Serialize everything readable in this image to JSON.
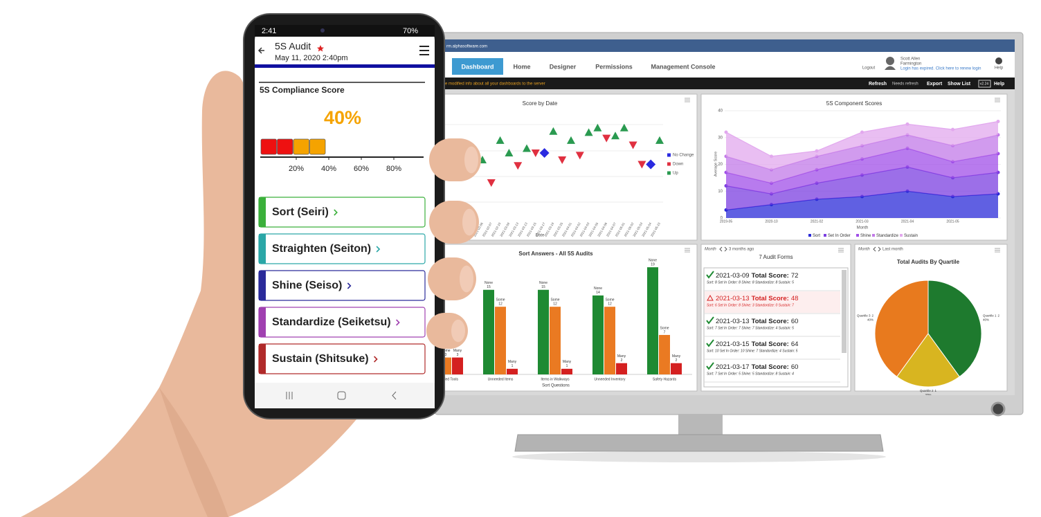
{
  "phone": {
    "status_time": "2:41",
    "battery": "70%",
    "title": "5S Audit",
    "subtitle": "May 11, 2020 2:40pm",
    "card_title": "5S Compliance Score",
    "score": {
      "value": 40,
      "label": "40%"
    },
    "scale": {
      "lim": [
        0,
        100
      ],
      "ticks": [
        {
          "value": 20,
          "label": "20%"
        },
        {
          "value": 40,
          "label": "40%"
        },
        {
          "value": 60,
          "label": "60%"
        },
        {
          "value": 80,
          "label": "80%"
        }
      ]
    },
    "segment_colors": [
      "#ee1111",
      "#ee1111",
      "#f5a300",
      "#f5a300"
    ],
    "menu": [
      {
        "label": "Sort (Seiri)",
        "color": "#3bb03b"
      },
      {
        "label": "Straighten (Seiton)",
        "color": "#2aa7a7"
      },
      {
        "label": "Shine (Seiso)",
        "color": "#2a2a9a"
      },
      {
        "label": "Standardize (Seiketsu)",
        "color": "#a040b0"
      },
      {
        "label": "Sustain (Shitsuke)",
        "color": "#b02a2a"
      }
    ]
  },
  "monitor": {
    "url": "rm.alphasoftware.com",
    "tabs": [
      "Dashboard",
      "Home",
      "Designer",
      "Permissions",
      "Management Console"
    ],
    "user": {
      "logout": "Logout",
      "name": "Scott Allen",
      "location": "Farmington",
      "notice": "Login has expired. Click here to renew login",
      "help": "Help"
    },
    "toolbar": {
      "message": "ve modified info about all your dashboards to the server",
      "refresh": "Refresh",
      "status": "Needs refresh",
      "export": "Export",
      "show_list": "Show List",
      "version": "v2.24",
      "help": "Help"
    },
    "score_by_date": {
      "type": "scatter",
      "title": "Score by Date",
      "x_label": "Date",
      "ylim": [
        0,
        100
      ],
      "x": [
        "2021-02-06",
        "2021-02-07",
        "2021-02-10",
        "2021-03-09",
        "2021-03-13",
        "2021-03-13",
        "2021-03-15",
        "2021-03-17",
        "2021-03-19",
        "2021-03-25",
        "2021-04-01",
        "2021-04-02",
        "2021-04-03",
        "2021-04-05",
        "2021-04-06",
        "2021-04-07",
        "2021-05-01",
        "2021-05-02",
        "2021-05-03",
        "2021-05-04",
        "2021-05-10"
      ],
      "series": [
        {
          "name": "No Change",
          "color": "#2a2ae0",
          "marker": "diamond",
          "values": [
            null,
            null,
            null,
            null,
            null,
            null,
            null,
            63,
            null,
            null,
            null,
            null,
            null,
            null,
            null,
            null,
            null,
            null,
            null,
            53,
            null
          ]
        },
        {
          "name": "Down",
          "color": "#e03040",
          "marker": "down",
          "values": [
            null,
            37,
            null,
            null,
            52,
            null,
            63,
            null,
            null,
            57,
            null,
            61,
            null,
            null,
            76,
            null,
            null,
            70,
            53,
            null,
            null
          ]
        },
        {
          "name": "Up",
          "color": "#2a9a50",
          "marker": "up",
          "values": [
            57,
            null,
            74,
            63,
            null,
            67,
            null,
            null,
            82,
            null,
            74,
            null,
            81,
            85,
            null,
            78,
            85,
            null,
            null,
            null,
            74
          ]
        }
      ]
    },
    "component_scores": {
      "type": "area",
      "title": "5S Component Scores",
      "x_label": "Month",
      "y_label": "Average Score",
      "stacked": true,
      "categories": [
        "2019-05",
        "2020-10",
        "2021-02",
        "2021-03",
        "2021-04",
        "2021-05",
        null
      ],
      "ylim": [
        0,
        40
      ],
      "yticks": [
        0,
        10,
        20,
        30,
        40
      ],
      "series": [
        {
          "name": "Sort",
          "color": "#2b2bd8",
          "values": [
            3,
            5,
            7,
            8,
            10,
            8,
            9
          ]
        },
        {
          "name": "Set In Order",
          "color": "#7b3fe0",
          "values": [
            9,
            4,
            6,
            8,
            9,
            7,
            8
          ]
        },
        {
          "name": "Shine",
          "color": "#a04fe8",
          "values": [
            5,
            4,
            5,
            6,
            7,
            6,
            7
          ]
        },
        {
          "name": "Standardize",
          "color": "#c27ae8",
          "values": [
            6,
            5,
            5,
            5,
            5,
            6,
            7
          ]
        },
        {
          "name": "Sustain",
          "color": "#e2a8ee",
          "values": [
            9,
            5,
            2,
            5,
            4,
            6,
            5
          ]
        }
      ]
    },
    "sort_answers": {
      "type": "bar",
      "title": "Sort Answers - All 5S Audits",
      "x_label": "Sort Questions",
      "ylim": [
        0,
        20
      ],
      "categories": [
        "Unneeded Tools",
        "Unneeded Items",
        "Items in Walkways",
        "Unneeded Inventory",
        "Safety Hazards"
      ],
      "series": [
        {
          "name": "None",
          "color": "#1e8a32",
          "values": [
            12,
            15,
            15,
            14,
            19
          ]
        },
        {
          "name": "Some",
          "color": "#ea7a22",
          "values": [
            3,
            12,
            12,
            12,
            7
          ]
        },
        {
          "name": "Many",
          "color": "#d42020",
          "values": [
            3,
            1,
            1,
            2,
            2
          ]
        }
      ]
    },
    "audit_forms": {
      "period": "Month",
      "range": "3 months ago",
      "title": "7 Audit Forms",
      "items": [
        {
          "date": "2021-03-09",
          "label": "Total Score:",
          "score": 72,
          "detail": "Sort: 8 Set In Order: 8 Shine: 8 Standordize: 8 Sustain: 5",
          "status": "ok"
        },
        {
          "date": "2021-03-13",
          "label": "Total Score:",
          "score": 48,
          "detail": "Sort: 6 Set In Order: 8 Shine: 3 Standordize: 0 Sustain: 7",
          "status": "warn"
        },
        {
          "date": "2021-03-13",
          "label": "Total Score:",
          "score": 60,
          "detail": "Sort: 7 Set In Order: 7 Shine: 7 Standordize: 4 Sustain: 5",
          "status": "ok"
        },
        {
          "date": "2021-03-15",
          "label": "Total Score:",
          "score": 64,
          "detail": "Sort: 10 Set In Order: 10 Shine: 7 Standordize: 4 Sustain: 5",
          "status": "ok"
        },
        {
          "date": "2021-03-17",
          "label": "Total Score:",
          "score": 60,
          "detail": "Sort: 7 Set In Order: 5 Shine: 5 Standordize: 8 Sustain: 4",
          "status": "ok"
        }
      ]
    },
    "quartiles": {
      "type": "pie",
      "period": "Month",
      "range": "Last month",
      "title": "Total Audits By Quartile",
      "categories": [
        "Quartile 1",
        "Quartile 2",
        "Quartile 3"
      ],
      "counts": [
        2,
        1,
        2
      ],
      "values": [
        40,
        20,
        40
      ],
      "value_labels": [
        "40%",
        "20%",
        "40%"
      ],
      "colors": [
        "#1e7a2e",
        "#d8b520",
        "#e87a1e"
      ]
    }
  }
}
